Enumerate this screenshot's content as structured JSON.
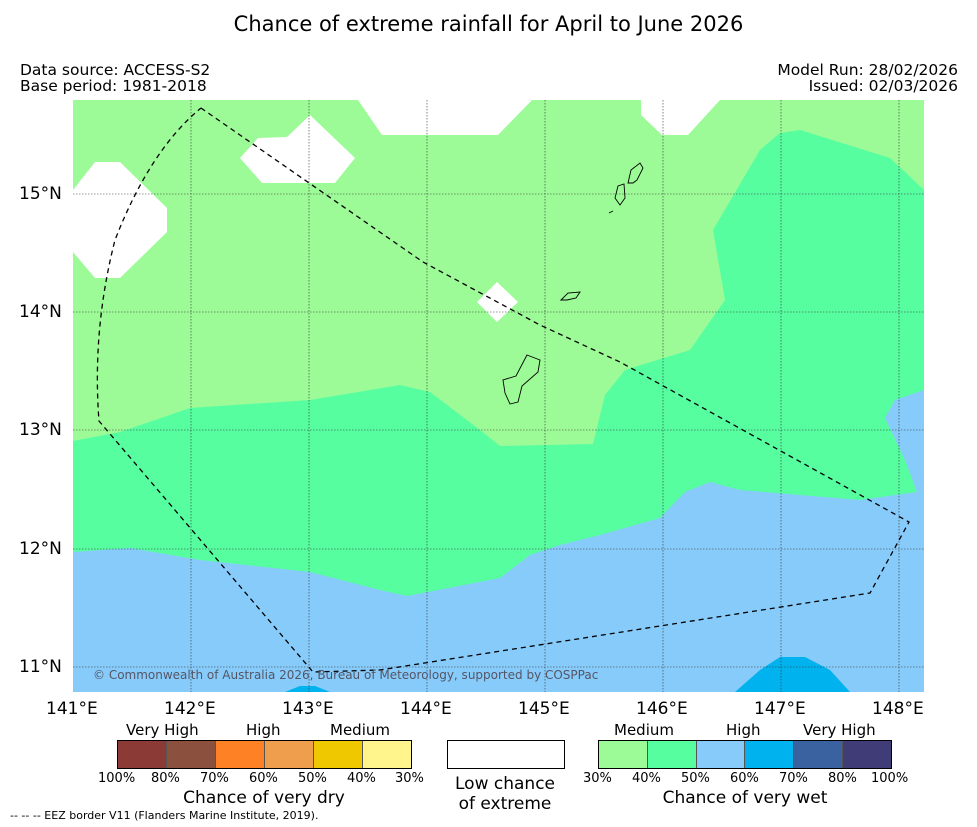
{
  "title": "Chance of extreme rainfall for April to June 2026",
  "data_source": "Data source: ACCESS-S2",
  "base_period": "Base period: 1981-2018",
  "model_run": "Model Run: 28/02/2026",
  "issued": "Issued: 02/03/2026",
  "copyright": "© Commonwealth of Australia 2026, Bureau of Meteorology, supported by COSPPac",
  "footer": "--  --  -- EEZ border V11 (Flanders Marine Institute, 2019).",
  "map": {
    "lon_ticks": [
      "141°E",
      "142°E",
      "143°E",
      "144°E",
      "145°E",
      "146°E",
      "147°E",
      "148°E"
    ],
    "lat_ticks": [
      "15°N",
      "14°N",
      "13°N",
      "12°N",
      "11°N"
    ]
  },
  "legend": {
    "dry": {
      "levels": [
        "Very High",
        "High",
        "Medium"
      ],
      "pcts": [
        "100%",
        "80%",
        "70%",
        "60%",
        "50%",
        "40%",
        "30%"
      ],
      "caption": "Chance of very dry",
      "colors": [
        "#8c3a35",
        "#8c503f",
        "#ff8126",
        "#ee9e4c",
        "#f0c800",
        "#fff58c"
      ]
    },
    "low": {
      "caption_1": "Low chance",
      "caption_2": "of extreme"
    },
    "wet": {
      "levels": [
        "Medium",
        "High",
        "Very High"
      ],
      "pcts": [
        "30%",
        "40%",
        "50%",
        "60%",
        "70%",
        "80%",
        "100%"
      ],
      "caption": "Chance of very wet",
      "colors": [
        "#9cfb97",
        "#56fea0",
        "#87cbfb",
        "#00b2ee",
        "#3a62a0",
        "#403c78"
      ]
    }
  }
}
